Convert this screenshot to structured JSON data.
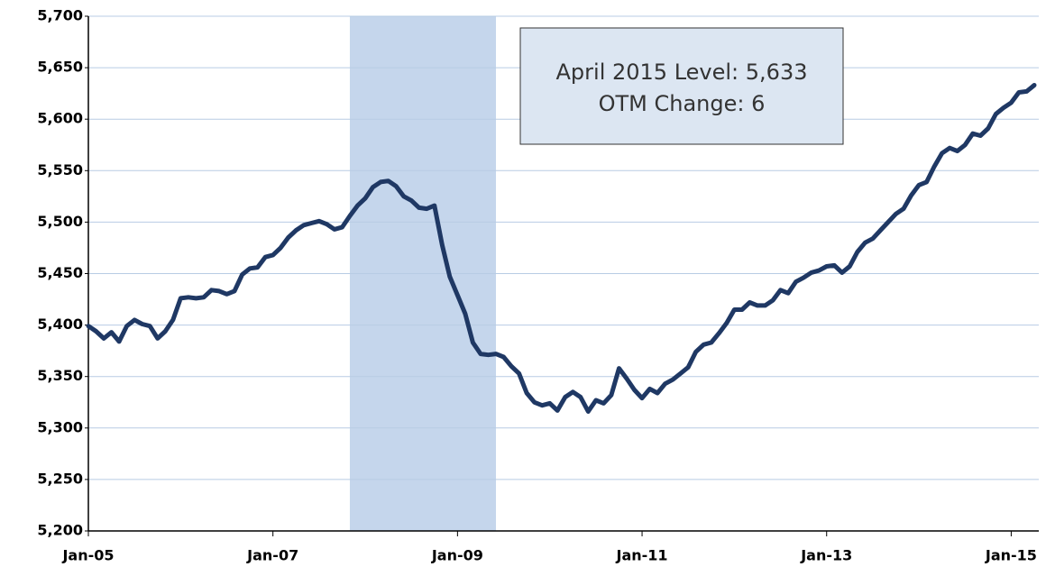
{
  "chart_data": {
    "type": "line",
    "annotations": [
      "April 2015 Level: 5,633",
      "OTM Change: 6"
    ],
    "categories": [
      "Jan-05",
      null,
      null,
      null,
      null,
      null,
      null,
      null,
      null,
      null,
      null,
      null,
      null,
      null,
      null,
      null,
      null,
      null,
      null,
      null,
      null,
      null,
      null,
      null,
      "Jan-07",
      null,
      null,
      null,
      null,
      null,
      null,
      null,
      null,
      null,
      null,
      null,
      null,
      null,
      null,
      null,
      null,
      null,
      null,
      null,
      null,
      null,
      null,
      null,
      "Jan-09",
      null,
      null,
      null,
      null,
      null,
      null,
      null,
      null,
      null,
      null,
      null,
      null,
      null,
      null,
      null,
      null,
      null,
      null,
      null,
      null,
      null,
      null,
      null,
      "Jan-11",
      null,
      null,
      null,
      null,
      null,
      null,
      null,
      null,
      null,
      null,
      null,
      null,
      null,
      null,
      null,
      null,
      null,
      null,
      null,
      null,
      null,
      null,
      null,
      "Jan-13",
      null,
      null,
      null,
      null,
      null,
      null,
      null,
      null,
      null,
      null,
      null,
      null,
      null,
      null,
      null,
      null,
      null,
      null,
      null,
      null,
      null,
      null,
      null,
      "Jan-15",
      null,
      null,
      null
    ],
    "series": [
      {
        "color": "#1f3864",
        "values": [
          5399,
          5394,
          5387,
          5393,
          5384,
          5399,
          5405,
          5401,
          5399,
          5387,
          5394,
          5405,
          5426,
          5427,
          5426,
          5427,
          5434,
          5433,
          5430,
          5433,
          5449,
          5455,
          5456,
          5466,
          5468,
          5475,
          5485,
          5492,
          5497,
          5499,
          5501,
          5498,
          5493,
          5495,
          5506,
          5516,
          5523,
          5534,
          5539,
          5540,
          5535,
          5525,
          5521,
          5514,
          5513,
          5516,
          5478,
          5447,
          5429,
          5411,
          5383,
          5372,
          5371,
          5372,
          5369,
          5360,
          5353,
          5334,
          5325,
          5322,
          5324,
          5317,
          5330,
          5335,
          5330,
          5316,
          5327,
          5324,
          5332,
          5358,
          5348,
          5337,
          5329,
          5338,
          5334,
          5343,
          5347,
          5353,
          5359,
          5374,
          5381,
          5383,
          5392,
          5402,
          5415,
          5415,
          5422,
          5419,
          5419,
          5424,
          5434,
          5431,
          5442,
          5446,
          5451,
          5453,
          5457,
          5458,
          5451,
          5457,
          5471,
          5480,
          5484,
          5492,
          5500,
          5508,
          5513,
          5526,
          5536,
          5539,
          5554,
          5567,
          5572,
          5569,
          5575,
          5586,
          5584,
          5591,
          5605,
          5611,
          5616,
          5626,
          5627,
          5633
        ]
      }
    ],
    "shaded_range": [
      34,
      53
    ],
    "shade_color": "#c5d6ec",
    "ylim": [
      5200,
      5700
    ],
    "yticks": [
      {
        "value": 5200,
        "label": "5,200"
      },
      {
        "value": 5250,
        "label": "5,250"
      },
      {
        "value": 5300,
        "label": "5,300"
      },
      {
        "value": 5350,
        "label": "5,350"
      },
      {
        "value": 5400,
        "label": "5,400"
      },
      {
        "value": 5450,
        "label": "5,450"
      },
      {
        "value": 5500,
        "label": "5,500"
      },
      {
        "value": 5550,
        "label": "5,550"
      },
      {
        "value": 5600,
        "label": "5,600"
      },
      {
        "value": 5650,
        "label": "5,650"
      },
      {
        "value": 5700,
        "label": "5,700"
      }
    ],
    "grid": true
  }
}
